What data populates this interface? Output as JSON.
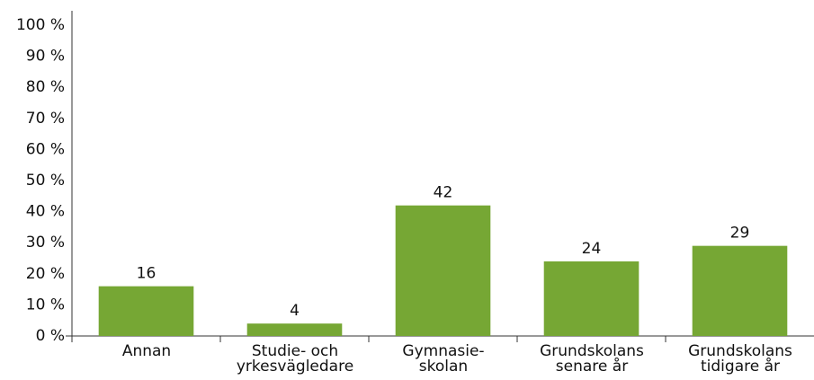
{
  "chart_data": {
    "type": "bar",
    "categories": [
      "Annan",
      "Studie- och\nyrkesvägledare",
      "Gymnasie-\nskolan",
      "Grundskolans\nsenare år",
      "Grundskolans\ntidigare år"
    ],
    "values": [
      16,
      4,
      42,
      24,
      29
    ],
    "color": "#76a734",
    "ylim": [
      0,
      100
    ],
    "yticks": [
      {
        "value": 0,
        "label": "0 %"
      },
      {
        "value": 10,
        "label": "10 %"
      },
      {
        "value": 20,
        "label": "20 %"
      },
      {
        "value": 30,
        "label": "30 %"
      },
      {
        "value": 40,
        "label": "40 %"
      },
      {
        "value": 50,
        "label": "50 %"
      },
      {
        "value": 60,
        "label": "60 %"
      },
      {
        "value": 70,
        "label": "70 %"
      },
      {
        "value": 80,
        "label": "80 %"
      },
      {
        "value": 90,
        "label": "90 %"
      },
      {
        "value": 100,
        "label": "100 %"
      }
    ],
    "grid": false
  }
}
